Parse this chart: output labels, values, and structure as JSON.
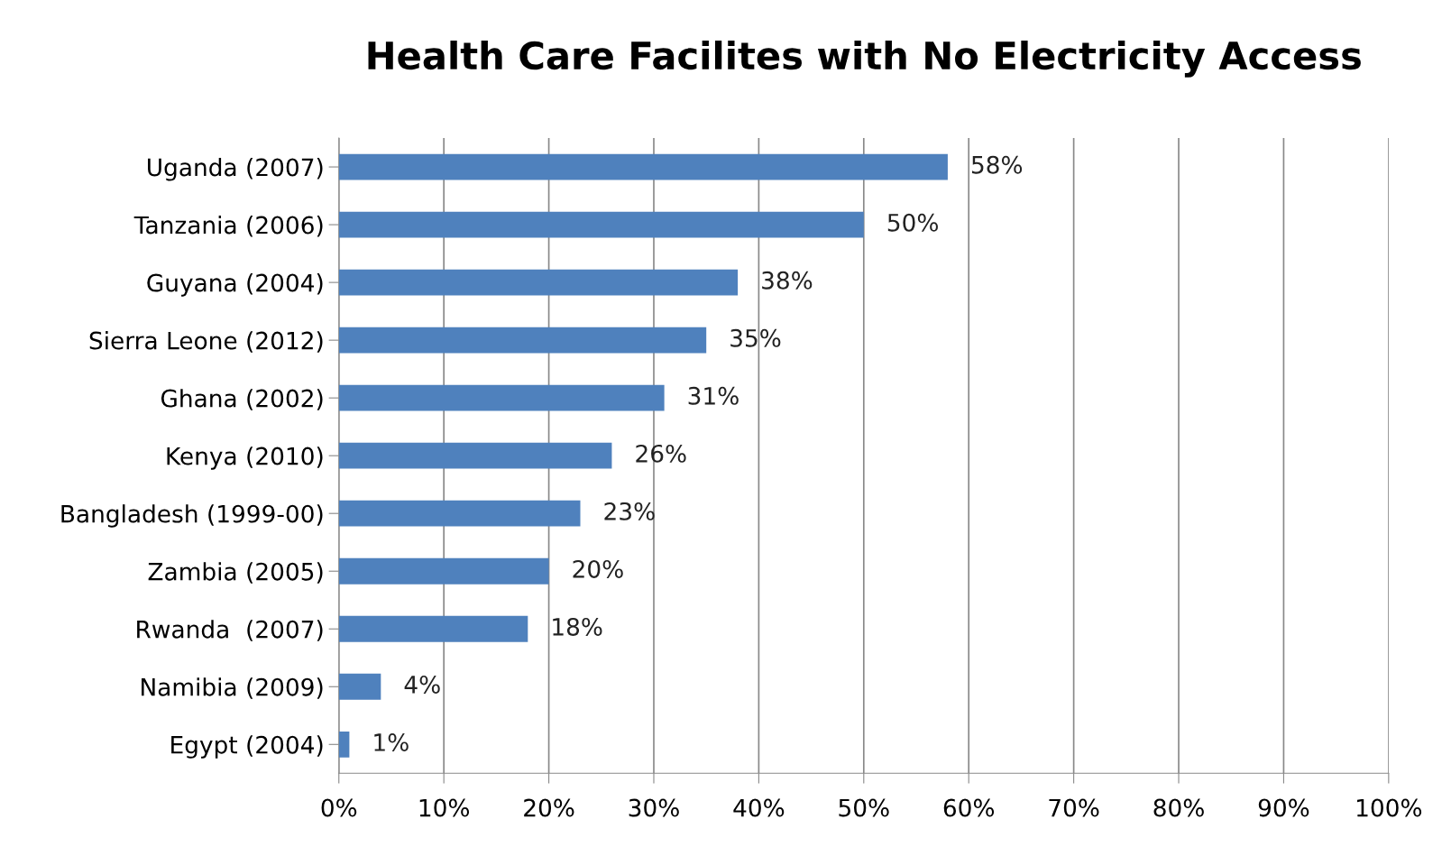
{
  "chart_data": {
    "type": "bar",
    "orientation": "horizontal",
    "title": "Health Care Facilites with No Electricity Access",
    "categories": [
      "Uganda (2007)",
      "Tanzania (2006)",
      "Guyana (2004)",
      "Sierra Leone (2012)",
      "Ghana (2002)",
      "Kenya (2010)",
      "Bangladesh (1999-00)",
      "Zambia (2005)",
      "Rwanda  (2007)",
      "Namibia (2009)",
      "Egypt (2004)"
    ],
    "values": [
      58,
      50,
      38,
      35,
      31,
      26,
      23,
      20,
      18,
      4,
      1
    ],
    "value_labels": [
      "58%",
      "50%",
      "38%",
      "35%",
      "31%",
      "26%",
      "23%",
      "20%",
      "18%",
      "4%",
      "1%"
    ],
    "color": "#4f81bd",
    "xlim": [
      0,
      100
    ],
    "xticks": [
      {
        "value": 0,
        "label": "0%"
      },
      {
        "value": 10,
        "label": "10%"
      },
      {
        "value": 20,
        "label": "20%"
      },
      {
        "value": 30,
        "label": "30%"
      },
      {
        "value": 40,
        "label": "40%"
      },
      {
        "value": 50,
        "label": "50%"
      },
      {
        "value": 60,
        "label": "60%"
      },
      {
        "value": 70,
        "label": "70%"
      },
      {
        "value": 80,
        "label": "80%"
      },
      {
        "value": 90,
        "label": "90%"
      },
      {
        "value": 100,
        "label": "100%"
      }
    ],
    "grid": "x",
    "legend": false
  }
}
